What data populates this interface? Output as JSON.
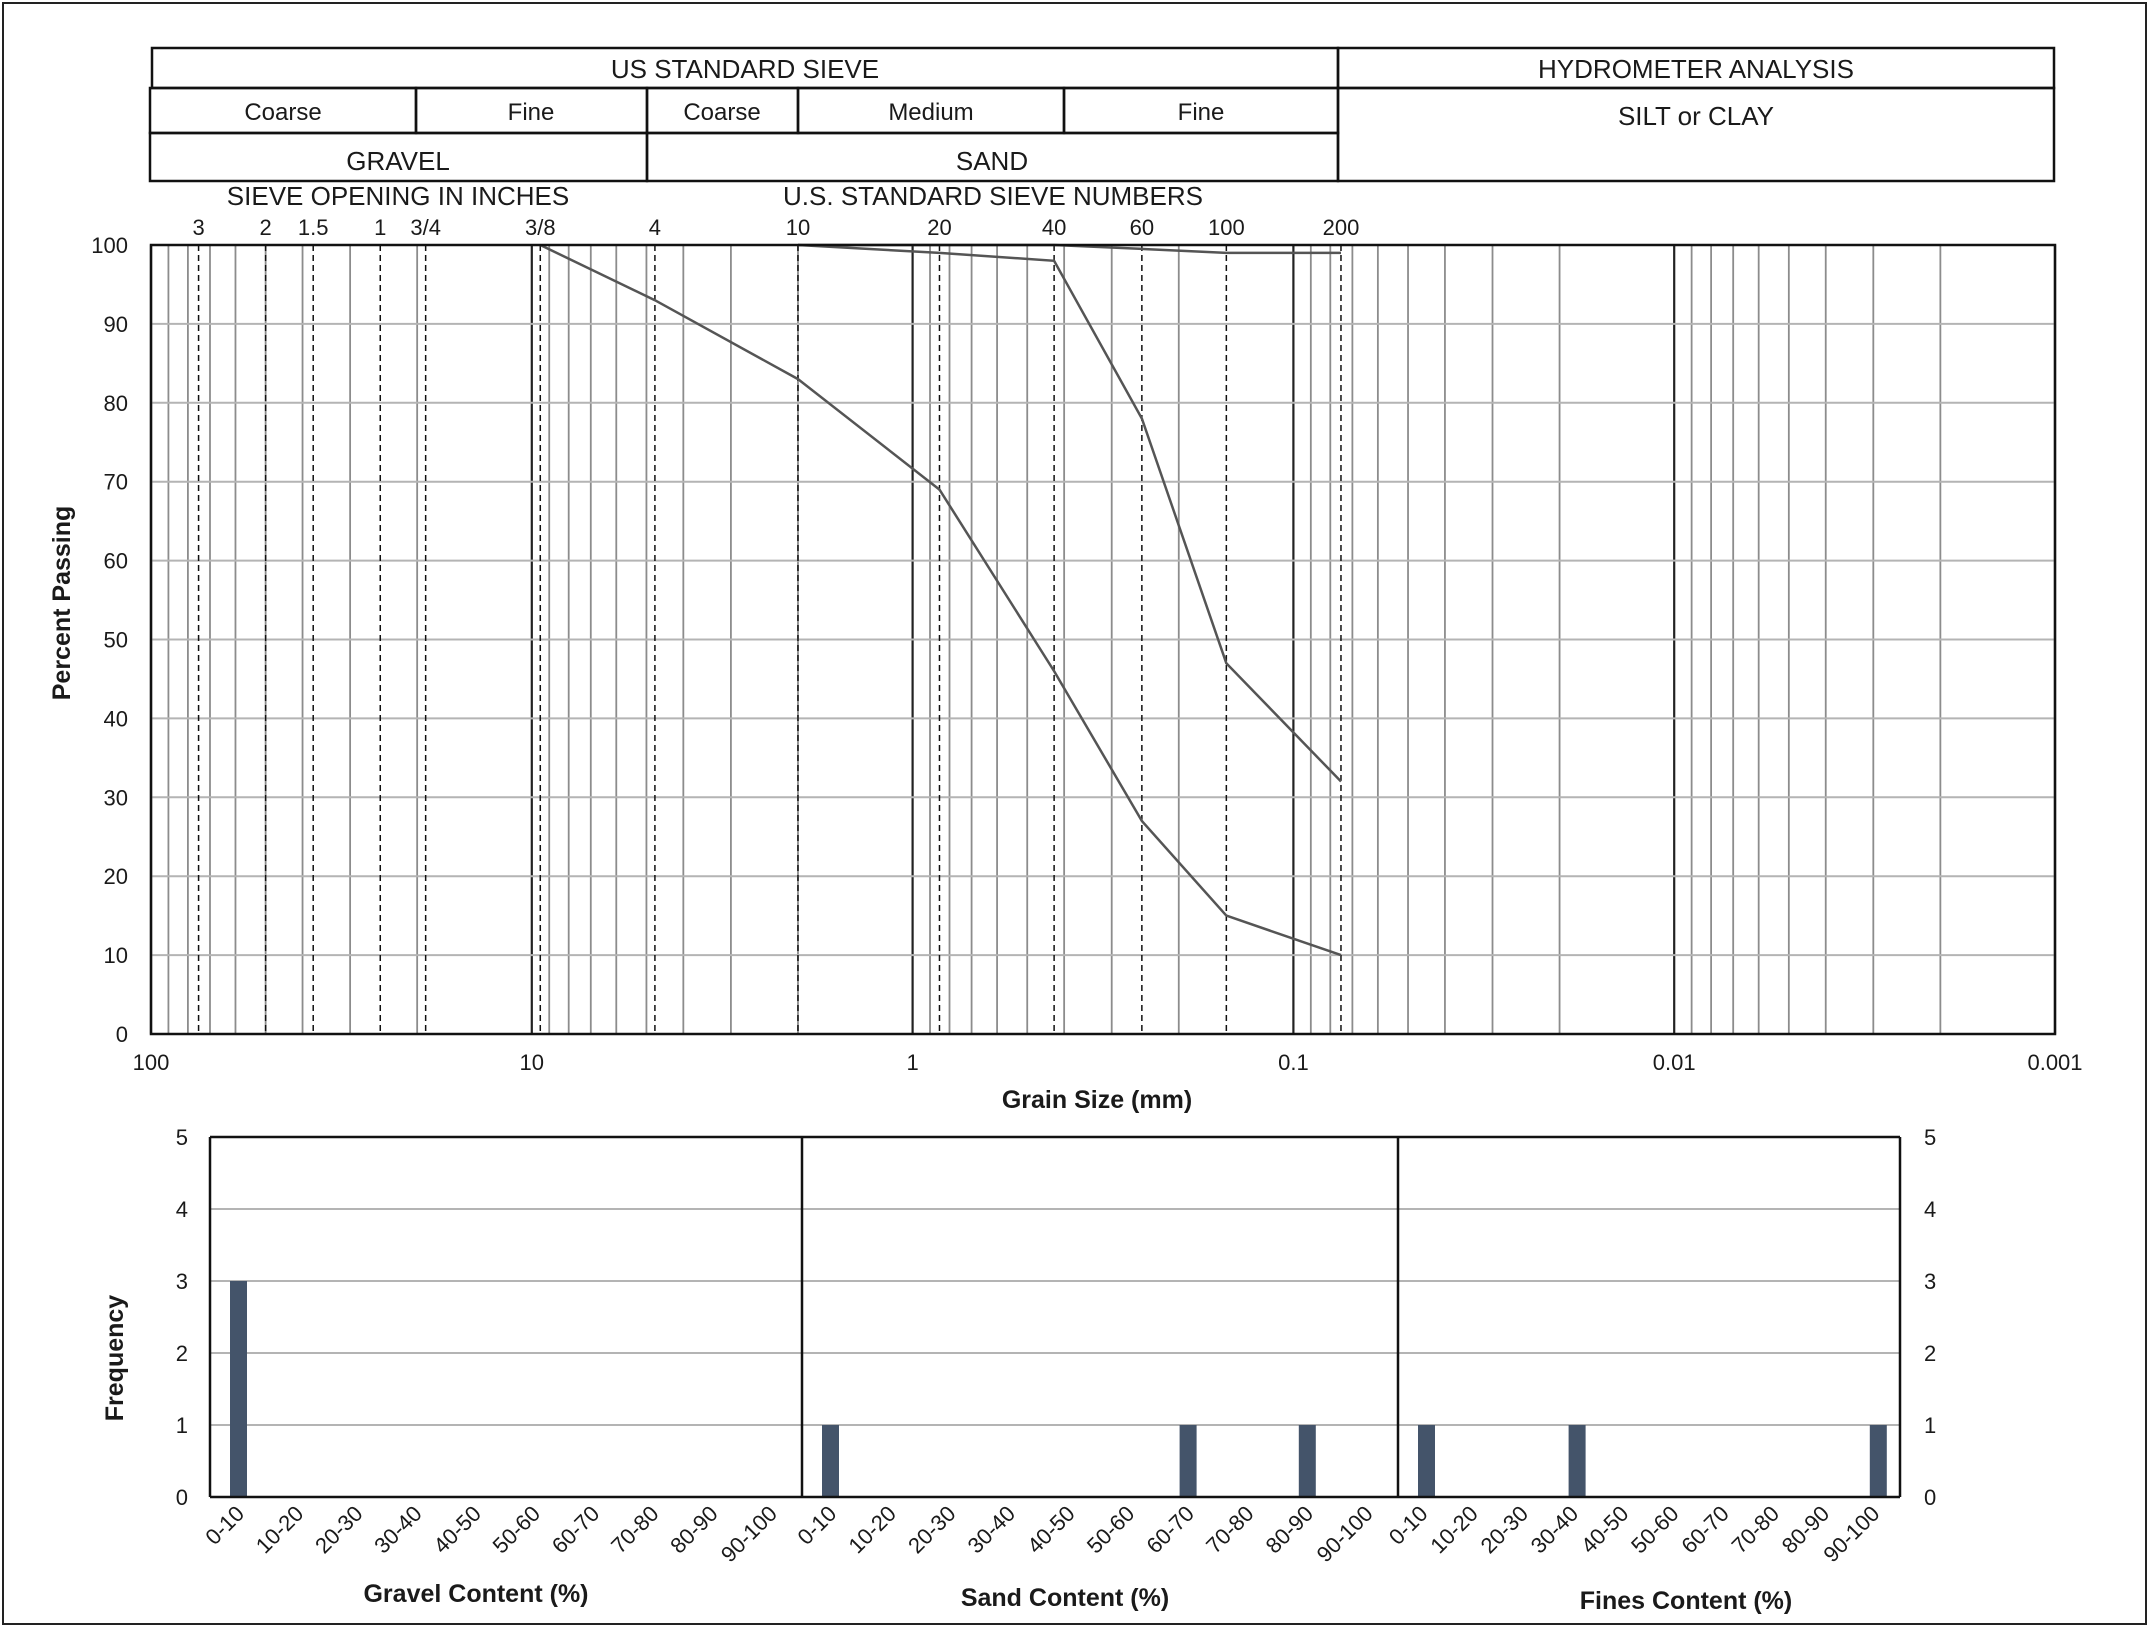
{
  "header": {
    "us_standard_sieve": "US STANDARD SIEVE",
    "hydrometer_analysis": "HYDROMETER ANALYSIS",
    "gravel_coarse": "Coarse",
    "gravel_fine": "Fine",
    "sand_coarse": "Coarse",
    "sand_medium": "Medium",
    "sand_fine": "Fine",
    "silt_or_clay": "SILT or CLAY",
    "gravel": "GRAVEL",
    "sand": "SAND",
    "sieve_opening_inches": "SIEVE OPENING IN INCHES",
    "us_standard_sieve_numbers": "U.S. STANDARD SIEVE NUMBERS"
  },
  "sieve_labels": [
    {
      "label": "3",
      "mm": 75
    },
    {
      "label": "2",
      "mm": 50
    },
    {
      "label": "1.5",
      "mm": 37.5
    },
    {
      "label": "1",
      "mm": 25
    },
    {
      "label": "3/4",
      "mm": 19
    },
    {
      "label": "3/8",
      "mm": 9.5
    },
    {
      "label": "4",
      "mm": 4.75
    },
    {
      "label": "10",
      "mm": 2
    },
    {
      "label": "20",
      "mm": 0.85
    },
    {
      "label": "40",
      "mm": 0.425
    },
    {
      "label": "60",
      "mm": 0.25
    },
    {
      "label": "100",
      "mm": 0.15
    },
    {
      "label": "200",
      "mm": 0.075
    }
  ],
  "chart_data": [
    {
      "type": "line",
      "xlabel": "Grain Size (mm)",
      "ylabel": "Percent Passing",
      "x_scale": "log",
      "x_reversed": true,
      "xlim": [
        100,
        0.001
      ],
      "ylim": [
        0,
        100
      ],
      "x_ticks": [
        "100",
        "10",
        "1",
        "0.1",
        "0.01",
        "0.001"
      ],
      "y_ticks": [
        "0",
        "10",
        "20",
        "30",
        "40",
        "50",
        "60",
        "70",
        "80",
        "90",
        "100"
      ],
      "grid": true,
      "series": [
        {
          "x": [
            9.5,
            4.75,
            2,
            0.85,
            0.425,
            0.25,
            0.15,
            0.075
          ],
          "y": [
            100,
            93,
            83,
            69,
            46,
            27,
            15,
            10
          ]
        },
        {
          "x": [
            2,
            0.85,
            0.425,
            0.25,
            0.15,
            0.075
          ],
          "y": [
            100,
            99,
            98,
            78,
            47,
            32
          ]
        },
        {
          "x": [
            2,
            0.85,
            0.425,
            0.25,
            0.15,
            0.075
          ],
          "y": [
            100,
            100,
            100,
            99.5,
            99,
            99
          ]
        }
      ]
    },
    {
      "type": "bar",
      "xlabel": "Gravel Content (%)",
      "ylabel": "Frequency",
      "ylim": [
        0,
        5
      ],
      "categories": [
        "0-10",
        "10-20",
        "20-30",
        "30-40",
        "40-50",
        "50-60",
        "60-70",
        "70-80",
        "80-90",
        "90-100"
      ],
      "values": [
        3,
        0,
        0,
        0,
        0,
        0,
        0,
        0,
        0,
        0
      ]
    },
    {
      "type": "bar",
      "xlabel": "Sand Content (%)",
      "ylabel": "Frequency",
      "ylim": [
        0,
        5
      ],
      "categories": [
        "0-10",
        "10-20",
        "20-30",
        "30-40",
        "40-50",
        "50-60",
        "60-70",
        "70-80",
        "80-90",
        "90-100"
      ],
      "values": [
        1,
        0,
        0,
        0,
        0,
        0,
        1,
        0,
        1,
        0
      ]
    },
    {
      "type": "bar",
      "xlabel": "Fines Content (%)",
      "ylabel": "Frequency",
      "ylim": [
        0,
        5
      ],
      "categories": [
        "0-10",
        "10-20",
        "20-30",
        "30-40",
        "40-50",
        "50-60",
        "60-70",
        "70-80",
        "80-90",
        "90-100"
      ],
      "values": [
        1,
        0,
        0,
        1,
        0,
        0,
        0,
        0,
        0,
        1
      ]
    }
  ],
  "histogram_y_ticks": [
    "0",
    "1",
    "2",
    "3",
    "4",
    "5"
  ],
  "colors": {
    "line": "#555555",
    "bar": "#44546a",
    "grid": "#b4b4b4",
    "axis": "#111111"
  }
}
